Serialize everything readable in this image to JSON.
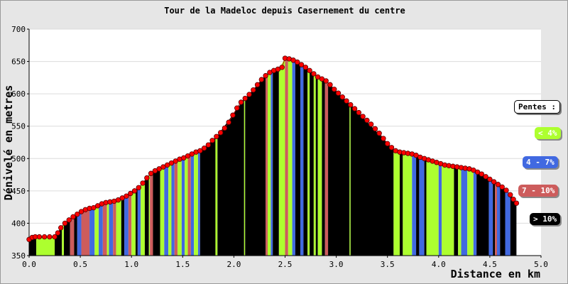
{
  "chart_data": {
    "type": "area",
    "title": "Tour de la Madeloc depuis Casernement du centre",
    "xlabel": "Distance en km",
    "ylabel": "Dénivelé en metres",
    "xlim": [
      0,
      5
    ],
    "ylim": [
      350,
      700
    ],
    "x_ticks": [
      "0.0",
      "0.5",
      "1.0",
      "1.5",
      "2.0",
      "2.5",
      "3.0",
      "3.5",
      "4.0",
      "4.5",
      "5.0"
    ],
    "y_ticks": [
      "350",
      "400",
      "450",
      "500",
      "550",
      "600",
      "650",
      "700"
    ],
    "grid": true,
    "legend_title": "Pentes :",
    "legend": [
      {
        "label": "< 4%",
        "color": "#adff2f"
      },
      {
        "label": "4 - 7%",
        "color": "#4169e1"
      },
      {
        "label": "7 - 10%",
        "color": "#cd5c5c"
      },
      {
        "label": "> 10%",
        "color": "#000000"
      }
    ],
    "profile": [
      {
        "x": 0.0,
        "y": 375
      },
      {
        "x": 0.03,
        "y": 378
      },
      {
        "x": 0.06,
        "y": 379
      },
      {
        "x": 0.1,
        "y": 379
      },
      {
        "x": 0.15,
        "y": 379
      },
      {
        "x": 0.2,
        "y": 379
      },
      {
        "x": 0.25,
        "y": 379
      },
      {
        "x": 0.28,
        "y": 385
      },
      {
        "x": 0.31,
        "y": 393
      },
      {
        "x": 0.35,
        "y": 400
      },
      {
        "x": 0.39,
        "y": 405
      },
      {
        "x": 0.43,
        "y": 410
      },
      {
        "x": 0.47,
        "y": 414
      },
      {
        "x": 0.51,
        "y": 418
      },
      {
        "x": 0.55,
        "y": 421
      },
      {
        "x": 0.59,
        "y": 423
      },
      {
        "x": 0.63,
        "y": 424
      },
      {
        "x": 0.67,
        "y": 427
      },
      {
        "x": 0.71,
        "y": 430
      },
      {
        "x": 0.75,
        "y": 432
      },
      {
        "x": 0.79,
        "y": 433
      },
      {
        "x": 0.83,
        "y": 434
      },
      {
        "x": 0.87,
        "y": 436
      },
      {
        "x": 0.91,
        "y": 439
      },
      {
        "x": 0.95,
        "y": 442
      },
      {
        "x": 0.99,
        "y": 446
      },
      {
        "x": 1.03,
        "y": 450
      },
      {
        "x": 1.07,
        "y": 455
      },
      {
        "x": 1.11,
        "y": 462
      },
      {
        "x": 1.15,
        "y": 470
      },
      {
        "x": 1.19,
        "y": 477
      },
      {
        "x": 1.23,
        "y": 481
      },
      {
        "x": 1.27,
        "y": 484
      },
      {
        "x": 1.31,
        "y": 487
      },
      {
        "x": 1.35,
        "y": 490
      },
      {
        "x": 1.39,
        "y": 493
      },
      {
        "x": 1.43,
        "y": 496
      },
      {
        "x": 1.47,
        "y": 499
      },
      {
        "x": 1.51,
        "y": 501
      },
      {
        "x": 1.55,
        "y": 504
      },
      {
        "x": 1.59,
        "y": 507
      },
      {
        "x": 1.63,
        "y": 510
      },
      {
        "x": 1.67,
        "y": 512
      },
      {
        "x": 1.71,
        "y": 516
      },
      {
        "x": 1.75,
        "y": 521
      },
      {
        "x": 1.79,
        "y": 528
      },
      {
        "x": 1.83,
        "y": 534
      },
      {
        "x": 1.87,
        "y": 540
      },
      {
        "x": 1.91,
        "y": 547
      },
      {
        "x": 1.95,
        "y": 556
      },
      {
        "x": 1.99,
        "y": 567
      },
      {
        "x": 2.03,
        "y": 578
      },
      {
        "x": 2.07,
        "y": 587
      },
      {
        "x": 2.11,
        "y": 593
      },
      {
        "x": 2.15,
        "y": 599
      },
      {
        "x": 2.19,
        "y": 606
      },
      {
        "x": 2.23,
        "y": 614
      },
      {
        "x": 2.27,
        "y": 622
      },
      {
        "x": 2.31,
        "y": 628
      },
      {
        "x": 2.35,
        "y": 633
      },
      {
        "x": 2.39,
        "y": 636
      },
      {
        "x": 2.43,
        "y": 638
      },
      {
        "x": 2.47,
        "y": 641
      },
      {
        "x": 2.5,
        "y": 655
      },
      {
        "x": 2.54,
        "y": 654
      },
      {
        "x": 2.58,
        "y": 652
      },
      {
        "x": 2.62,
        "y": 649
      },
      {
        "x": 2.66,
        "y": 645
      },
      {
        "x": 2.7,
        "y": 641
      },
      {
        "x": 2.74,
        "y": 636
      },
      {
        "x": 2.78,
        "y": 631
      },
      {
        "x": 2.82,
        "y": 626
      },
      {
        "x": 2.86,
        "y": 623
      },
      {
        "x": 2.9,
        "y": 620
      },
      {
        "x": 2.94,
        "y": 614
      },
      {
        "x": 2.98,
        "y": 607
      },
      {
        "x": 3.02,
        "y": 601
      },
      {
        "x": 3.06,
        "y": 595
      },
      {
        "x": 3.1,
        "y": 589
      },
      {
        "x": 3.14,
        "y": 583
      },
      {
        "x": 3.18,
        "y": 577
      },
      {
        "x": 3.22,
        "y": 571
      },
      {
        "x": 3.26,
        "y": 565
      },
      {
        "x": 3.3,
        "y": 559
      },
      {
        "x": 3.34,
        "y": 553
      },
      {
        "x": 3.38,
        "y": 546
      },
      {
        "x": 3.42,
        "y": 539
      },
      {
        "x": 3.46,
        "y": 531
      },
      {
        "x": 3.5,
        "y": 523
      },
      {
        "x": 3.54,
        "y": 517
      },
      {
        "x": 3.58,
        "y": 512
      },
      {
        "x": 3.62,
        "y": 510
      },
      {
        "x": 3.66,
        "y": 509
      },
      {
        "x": 3.7,
        "y": 508
      },
      {
        "x": 3.74,
        "y": 507
      },
      {
        "x": 3.78,
        "y": 505
      },
      {
        "x": 3.82,
        "y": 502
      },
      {
        "x": 3.86,
        "y": 500
      },
      {
        "x": 3.9,
        "y": 498
      },
      {
        "x": 3.94,
        "y": 496
      },
      {
        "x": 3.98,
        "y": 494
      },
      {
        "x": 4.02,
        "y": 492
      },
      {
        "x": 4.06,
        "y": 490
      },
      {
        "x": 4.1,
        "y": 489
      },
      {
        "x": 4.14,
        "y": 488
      },
      {
        "x": 4.18,
        "y": 487
      },
      {
        "x": 4.22,
        "y": 486
      },
      {
        "x": 4.26,
        "y": 485
      },
      {
        "x": 4.3,
        "y": 484
      },
      {
        "x": 4.34,
        "y": 482
      },
      {
        "x": 4.38,
        "y": 479
      },
      {
        "x": 4.42,
        "y": 476
      },
      {
        "x": 4.46,
        "y": 472
      },
      {
        "x": 4.5,
        "y": 468
      },
      {
        "x": 4.54,
        "y": 464
      },
      {
        "x": 4.58,
        "y": 460
      },
      {
        "x": 4.62,
        "y": 456
      },
      {
        "x": 4.66,
        "y": 451
      },
      {
        "x": 4.7,
        "y": 444
      },
      {
        "x": 4.73,
        "y": 437
      },
      {
        "x": 4.76,
        "y": 431
      }
    ],
    "slope_segments": [
      {
        "x0": 0.0,
        "x1": 0.07,
        "cls": "black"
      },
      {
        "x0": 0.07,
        "x1": 0.25,
        "cls": "green"
      },
      {
        "x0": 0.25,
        "x1": 0.32,
        "cls": "black"
      },
      {
        "x0": 0.32,
        "x1": 0.34,
        "cls": "green"
      },
      {
        "x0": 0.34,
        "x1": 0.4,
        "cls": "black"
      },
      {
        "x0": 0.4,
        "x1": 0.44,
        "cls": "red"
      },
      {
        "x0": 0.44,
        "x1": 0.47,
        "cls": "black"
      },
      {
        "x0": 0.47,
        "x1": 0.51,
        "cls": "blue"
      },
      {
        "x0": 0.51,
        "x1": 0.59,
        "cls": "red"
      },
      {
        "x0": 0.59,
        "x1": 0.64,
        "cls": "blue"
      },
      {
        "x0": 0.64,
        "x1": 0.68,
        "cls": "green"
      },
      {
        "x0": 0.68,
        "x1": 0.72,
        "cls": "blue"
      },
      {
        "x0": 0.72,
        "x1": 0.76,
        "cls": "red"
      },
      {
        "x0": 0.76,
        "x1": 0.78,
        "cls": "green"
      },
      {
        "x0": 0.78,
        "x1": 0.82,
        "cls": "blue"
      },
      {
        "x0": 0.82,
        "x1": 0.85,
        "cls": "red"
      },
      {
        "x0": 0.85,
        "x1": 0.9,
        "cls": "green"
      },
      {
        "x0": 0.9,
        "x1": 0.93,
        "cls": "black"
      },
      {
        "x0": 0.93,
        "x1": 0.97,
        "cls": "blue"
      },
      {
        "x0": 0.97,
        "x1": 1.0,
        "cls": "red"
      },
      {
        "x0": 1.0,
        "x1": 1.04,
        "cls": "green"
      },
      {
        "x0": 1.04,
        "x1": 1.06,
        "cls": "black"
      },
      {
        "x0": 1.06,
        "x1": 1.09,
        "cls": "blue"
      },
      {
        "x0": 1.09,
        "x1": 1.13,
        "cls": "green"
      },
      {
        "x0": 1.13,
        "x1": 1.17,
        "cls": "black"
      },
      {
        "x0": 1.17,
        "x1": 1.18,
        "cls": "green"
      },
      {
        "x0": 1.18,
        "x1": 1.21,
        "cls": "red"
      },
      {
        "x0": 1.21,
        "x1": 1.28,
        "cls": "black"
      },
      {
        "x0": 1.28,
        "x1": 1.32,
        "cls": "green"
      },
      {
        "x0": 1.32,
        "x1": 1.36,
        "cls": "blue"
      },
      {
        "x0": 1.36,
        "x1": 1.39,
        "cls": "green"
      },
      {
        "x0": 1.39,
        "x1": 1.42,
        "cls": "blue"
      },
      {
        "x0": 1.42,
        "x1": 1.45,
        "cls": "red"
      },
      {
        "x0": 1.45,
        "x1": 1.49,
        "cls": "green"
      },
      {
        "x0": 1.49,
        "x1": 1.52,
        "cls": "blue"
      },
      {
        "x0": 1.52,
        "x1": 1.55,
        "cls": "green"
      },
      {
        "x0": 1.55,
        "x1": 1.58,
        "cls": "red"
      },
      {
        "x0": 1.58,
        "x1": 1.61,
        "cls": "blue"
      },
      {
        "x0": 1.61,
        "x1": 1.65,
        "cls": "green"
      },
      {
        "x0": 1.65,
        "x1": 1.67,
        "cls": "blue"
      },
      {
        "x0": 1.67,
        "x1": 1.82,
        "cls": "black"
      },
      {
        "x0": 1.82,
        "x1": 1.84,
        "cls": "green"
      },
      {
        "x0": 1.84,
        "x1": 2.1,
        "cls": "black"
      },
      {
        "x0": 2.1,
        "x1": 2.11,
        "cls": "green"
      },
      {
        "x0": 2.11,
        "x1": 2.31,
        "cls": "black"
      },
      {
        "x0": 2.31,
        "x1": 2.33,
        "cls": "red"
      },
      {
        "x0": 2.33,
        "x1": 2.36,
        "cls": "green"
      },
      {
        "x0": 2.36,
        "x1": 2.38,
        "cls": "blue"
      },
      {
        "x0": 2.38,
        "x1": 2.44,
        "cls": "black"
      },
      {
        "x0": 2.44,
        "x1": 2.5,
        "cls": "green"
      },
      {
        "x0": 2.5,
        "x1": 2.53,
        "cls": "red"
      },
      {
        "x0": 2.53,
        "x1": 2.57,
        "cls": "green"
      },
      {
        "x0": 2.57,
        "x1": 2.6,
        "cls": "blue"
      },
      {
        "x0": 2.6,
        "x1": 2.65,
        "cls": "black"
      },
      {
        "x0": 2.65,
        "x1": 2.68,
        "cls": "blue"
      },
      {
        "x0": 2.68,
        "x1": 2.72,
        "cls": "black"
      },
      {
        "x0": 2.72,
        "x1": 2.74,
        "cls": "green"
      },
      {
        "x0": 2.74,
        "x1": 2.78,
        "cls": "black"
      },
      {
        "x0": 2.78,
        "x1": 2.8,
        "cls": "green"
      },
      {
        "x0": 2.8,
        "x1": 2.82,
        "cls": "black"
      },
      {
        "x0": 2.82,
        "x1": 2.86,
        "cls": "green"
      },
      {
        "x0": 2.86,
        "x1": 2.89,
        "cls": "black"
      },
      {
        "x0": 2.89,
        "x1": 2.92,
        "cls": "red"
      },
      {
        "x0": 2.92,
        "x1": 3.13,
        "cls": "black"
      },
      {
        "x0": 3.13,
        "x1": 3.14,
        "cls": "green"
      },
      {
        "x0": 3.14,
        "x1": 3.56,
        "cls": "black"
      },
      {
        "x0": 3.56,
        "x1": 3.62,
        "cls": "green"
      },
      {
        "x0": 3.62,
        "x1": 3.65,
        "cls": "black"
      },
      {
        "x0": 3.65,
        "x1": 3.74,
        "cls": "green"
      },
      {
        "x0": 3.74,
        "x1": 3.78,
        "cls": "blue"
      },
      {
        "x0": 3.78,
        "x1": 3.81,
        "cls": "black"
      },
      {
        "x0": 3.81,
        "x1": 3.86,
        "cls": "blue"
      },
      {
        "x0": 3.86,
        "x1": 3.88,
        "cls": "black"
      },
      {
        "x0": 3.88,
        "x1": 4.0,
        "cls": "green"
      },
      {
        "x0": 4.0,
        "x1": 4.03,
        "cls": "blue"
      },
      {
        "x0": 4.03,
        "x1": 4.15,
        "cls": "green"
      },
      {
        "x0": 4.15,
        "x1": 4.19,
        "cls": "black"
      },
      {
        "x0": 4.19,
        "x1": 4.22,
        "cls": "green"
      },
      {
        "x0": 4.22,
        "x1": 4.28,
        "cls": "blue"
      },
      {
        "x0": 4.28,
        "x1": 4.34,
        "cls": "green"
      },
      {
        "x0": 4.34,
        "x1": 4.37,
        "cls": "blue"
      },
      {
        "x0": 4.37,
        "x1": 4.49,
        "cls": "black"
      },
      {
        "x0": 4.49,
        "x1": 4.53,
        "cls": "blue"
      },
      {
        "x0": 4.53,
        "x1": 4.55,
        "cls": "black"
      },
      {
        "x0": 4.55,
        "x1": 4.57,
        "cls": "red"
      },
      {
        "x0": 4.57,
        "x1": 4.6,
        "cls": "blue"
      },
      {
        "x0": 4.6,
        "x1": 4.65,
        "cls": "black"
      },
      {
        "x0": 4.65,
        "x1": 4.7,
        "cls": "blue"
      },
      {
        "x0": 4.7,
        "x1": 4.76,
        "cls": "black"
      }
    ],
    "colors": {
      "black": "#000000",
      "green": "#adff2f",
      "blue": "#4169e1",
      "red": "#cd5c5c",
      "marker": "#ff0000",
      "marker_edge": "#550000",
      "grid": "#dcdcdc"
    }
  }
}
